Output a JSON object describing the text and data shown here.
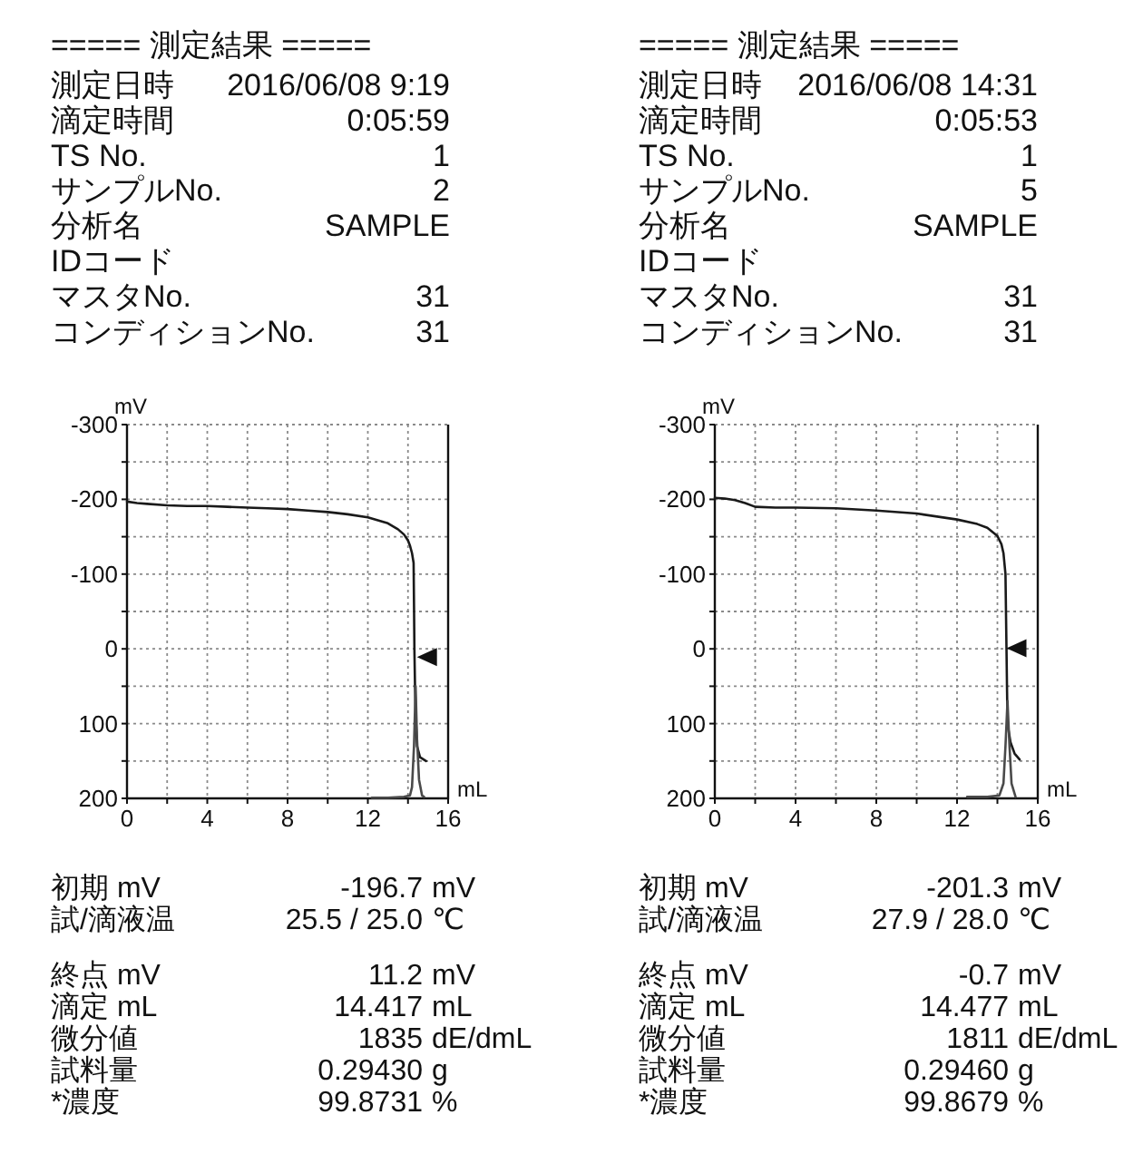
{
  "chart_data": [
    {
      "type": "line",
      "title": "===== 測定結果 =====",
      "xlabel": "mL",
      "ylabel": "mV",
      "xlim": [
        0,
        16
      ],
      "ylim": [
        200,
        -300
      ],
      "xticks": [
        0,
        {
          "value": 2,
          "label": null
        },
        4,
        {
          "value": 6,
          "label": null
        },
        8,
        {
          "value": 10,
          "label": null
        },
        12,
        {
          "value": 14,
          "label": null
        },
        16
      ],
      "yticks": [
        -300,
        {
          "value": -250,
          "label": null
        },
        -200,
        {
          "value": -150,
          "label": null
        },
        -100,
        {
          "value": -50,
          "label": null
        },
        0,
        {
          "value": 50,
          "label": null
        },
        100,
        {
          "value": 150,
          "label": null
        },
        200
      ],
      "grid": true,
      "series": [
        {
          "color": "#1a1a1a",
          "x": [
            0,
            0.5,
            1,
            2,
            3,
            4,
            5,
            6,
            7,
            8,
            9,
            10,
            11,
            12,
            12.5,
            13,
            13.5,
            13.8,
            14,
            14.1,
            14.2,
            14.28,
            14.3,
            14.32,
            14.35,
            14.4,
            14.45,
            14.6,
            14.9
          ],
          "values": [
            -197,
            -195,
            -194,
            -192,
            -191,
            -191,
            -190,
            -189,
            -188,
            -187,
            -185,
            -183,
            -180,
            -176,
            -172,
            -168,
            -160,
            -153,
            -145,
            -138,
            -128,
            -115,
            -60,
            0,
            50,
            100,
            130,
            145,
            150
          ]
        },
        {
          "color": "#4a4a4a",
          "x": [
            12.2,
            13,
            13.8,
            14.1,
            14.2,
            14.3,
            14.38,
            14.45,
            14.55,
            14.7,
            14.8
          ],
          "values": [
            199,
            199,
            198,
            196,
            185,
            130,
            50,
            120,
            175,
            196,
            198
          ]
        },
        {
          "type": "scatter",
          "marker": "triangle",
          "color": "#111111",
          "x": [
            14.9
          ],
          "values": [
            11
          ]
        }
      ],
      "annotations": [
        "測定日時",
        "2016/06/08 9:19",
        "滴定時間",
        "0:05:59",
        "TS No.",
        "1",
        "サンプルNo.",
        "2",
        "分析名",
        "SAMPLE",
        "IDコード",
        "マスタNo.",
        "31",
        "コンディションNo.",
        "31",
        "初期 mV",
        "-196.7",
        "mV",
        "試/滴液温",
        "25.5 / 25.0",
        "℃",
        "終点 mV",
        "11.2",
        "mV",
        "滴定 mL",
        "14.417",
        "mL",
        "微分値",
        "1835",
        "dE/dmL",
        "試料量",
        "0.29430",
        "g",
        "*濃度",
        "99.8731",
        "%"
      ]
    },
    {
      "type": "line",
      "title": "===== 測定結果 =====",
      "xlabel": "mL",
      "ylabel": "mV",
      "xlim": [
        0,
        16
      ],
      "ylim": [
        200,
        -300
      ],
      "xticks": [
        0,
        {
          "value": 2,
          "label": null
        },
        4,
        {
          "value": 6,
          "label": null
        },
        8,
        {
          "value": 10,
          "label": null
        },
        12,
        {
          "value": 14,
          "label": null
        },
        16
      ],
      "yticks": [
        -300,
        {
          "value": -250,
          "label": null
        },
        -200,
        {
          "value": -150,
          "label": null
        },
        -100,
        {
          "value": -50,
          "label": null
        },
        0,
        {
          "value": 50,
          "label": null
        },
        100,
        {
          "value": 150,
          "label": null
        },
        200
      ],
      "grid": true,
      "series": [
        {
          "color": "#1a1a1a",
          "x": [
            0,
            0.5,
            1,
            1.5,
            2,
            3,
            4,
            6,
            8,
            10,
            12,
            13,
            13.5,
            14,
            14.2,
            14.3,
            14.4,
            14.45,
            14.5,
            14.65,
            14.85,
            15.1
          ],
          "values": [
            -202,
            -201,
            -199,
            -195,
            -190,
            -189,
            -189,
            -188,
            -185,
            -181,
            -173,
            -167,
            -162,
            -151,
            -140,
            -128,
            -100,
            0,
            100,
            125,
            140,
            148
          ]
        },
        {
          "color": "#4a4a4a",
          "x": [
            12.5,
            13.5,
            14.1,
            14.3,
            14.4,
            14.5,
            14.6,
            14.7,
            14.9
          ],
          "values": [
            198,
            198,
            196,
            180,
            130,
            70,
            130,
            180,
            198
          ]
        },
        {
          "type": "scatter",
          "marker": "triangle",
          "color": "#111111",
          "x": [
            14.9
          ],
          "values": [
            -1
          ]
        }
      ],
      "annotations": [
        "測定日時",
        "2016/06/08 14:31",
        "滴定時間",
        "0:05:53",
        "TS No.",
        "1",
        "サンプルNo.",
        "5",
        "分析名",
        "SAMPLE",
        "IDコード",
        "マスタNo.",
        "31",
        "コンディションNo.",
        "31",
        "初期 mV",
        "-201.3",
        "mV",
        "試/滴液温",
        "27.9 / 28.0",
        "℃",
        "終点 mV",
        "-0.7",
        "mV",
        "滴定 mL",
        "14.477",
        "mL",
        "微分値",
        "1811",
        "dE/dmL",
        "試料量",
        "0.29460",
        "g",
        "*濃度",
        "99.8679",
        "%"
      ]
    }
  ]
}
